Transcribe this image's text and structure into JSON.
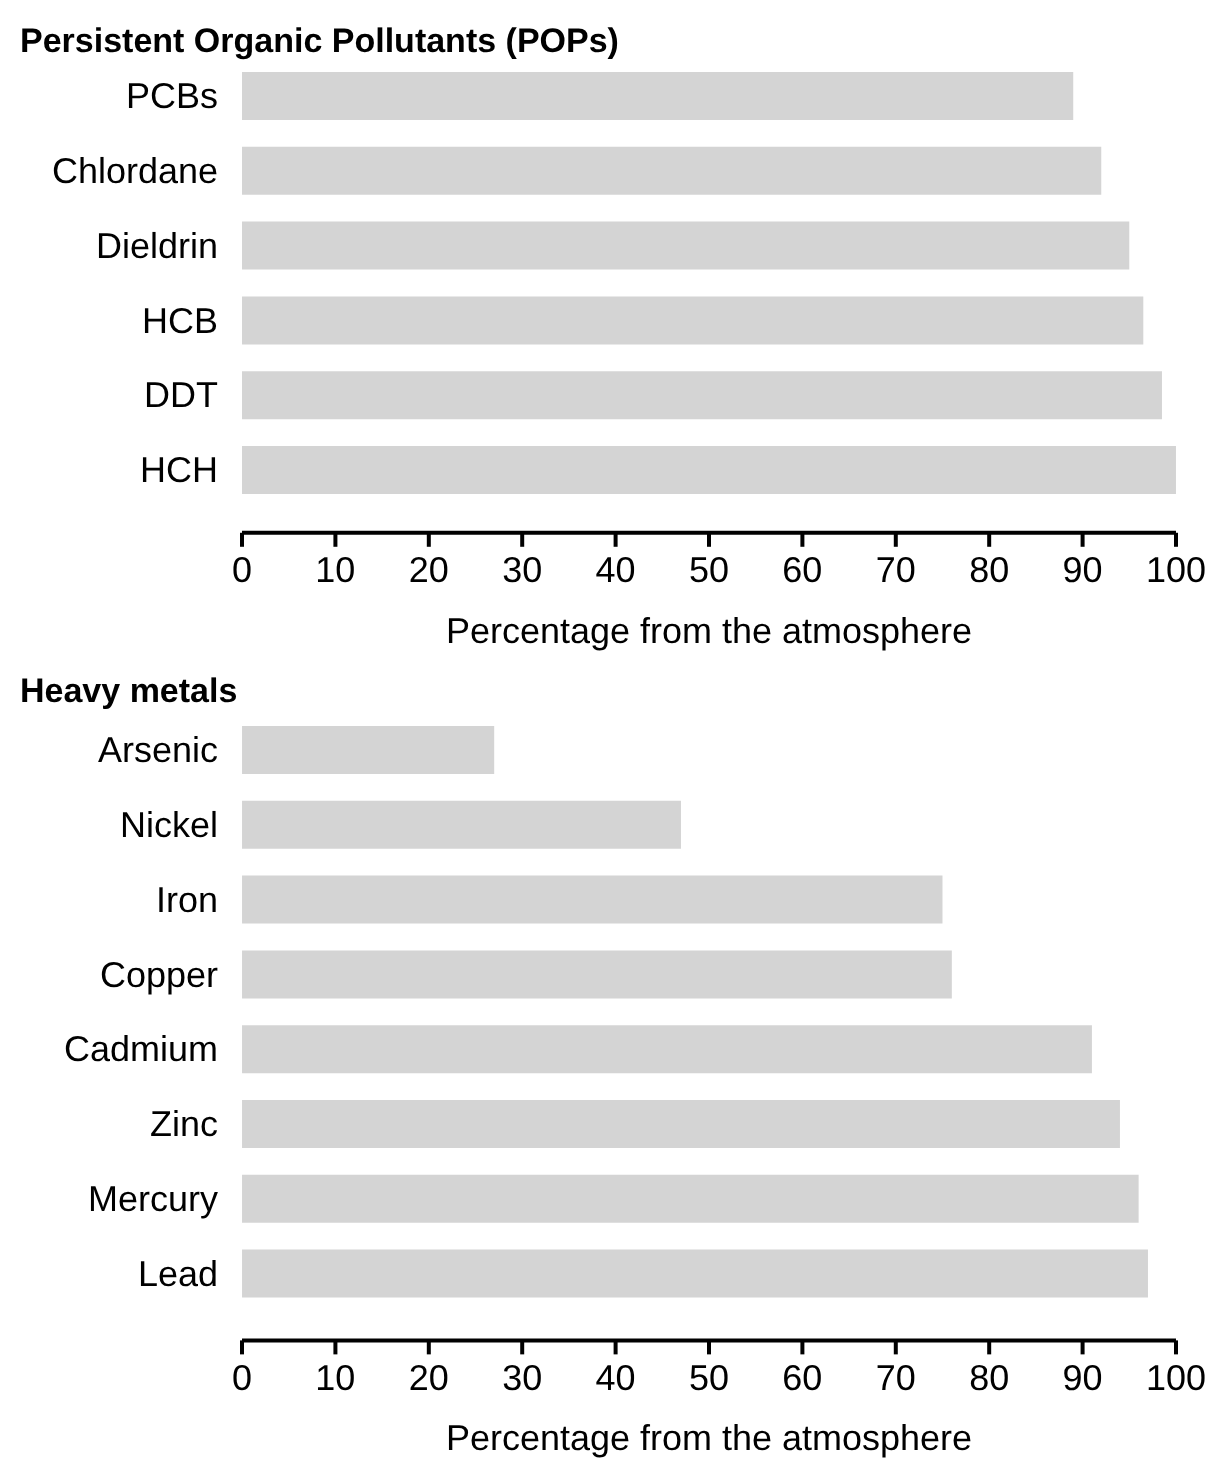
{
  "chart_data": [
    {
      "type": "bar",
      "orientation": "horizontal",
      "title": "Persistent Organic Pollutants (POPs)",
      "xlabel": "Percentage from the atmosphere",
      "categories": [
        "PCBs",
        "Chlordane",
        "Dieldrin",
        "HCB",
        "DDT",
        "HCH"
      ],
      "values": [
        89,
        92,
        95,
        96.5,
        98.5,
        100
      ],
      "color": "#d4d4d4",
      "xlim": [
        0,
        100
      ],
      "xticks": [
        0,
        10,
        20,
        30,
        40,
        50,
        60,
        70,
        80,
        90,
        100
      ]
    },
    {
      "type": "bar",
      "orientation": "horizontal",
      "title": "Heavy metals",
      "xlabel": "Percentage from the atmosphere",
      "categories": [
        "Arsenic",
        "Nickel",
        "Iron",
        "Copper",
        "Cadmium",
        "Zinc",
        "Mercury",
        "Lead"
      ],
      "values": [
        27,
        47,
        75,
        76,
        91,
        94,
        96,
        97
      ],
      "color": "#d4d4d4",
      "xlim": [
        0,
        100
      ],
      "xticks": [
        0,
        10,
        20,
        30,
        40,
        50,
        60,
        70,
        80,
        90,
        100
      ]
    }
  ]
}
